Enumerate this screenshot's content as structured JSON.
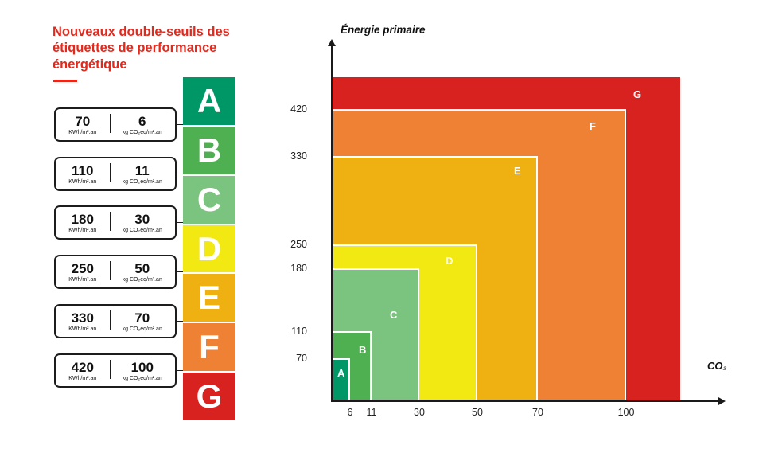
{
  "left_panel": {
    "title": "Nouveaux double-seuils des étiquettes de performance énergétique",
    "title_color": "#e5281c",
    "kwh_unit": "KWh/m².an",
    "co2_unit": "kg CO₂eq/m².an",
    "thresholds": [
      {
        "kwh": "70",
        "co2": "6"
      },
      {
        "kwh": "110",
        "co2": "11"
      },
      {
        "kwh": "180",
        "co2": "30"
      },
      {
        "kwh": "250",
        "co2": "50"
      },
      {
        "kwh": "330",
        "co2": "70"
      },
      {
        "kwh": "420",
        "co2": "100"
      }
    ],
    "classes": [
      {
        "letter": "A",
        "color": "#009767"
      },
      {
        "letter": "B",
        "color": "#4fb052"
      },
      {
        "letter": "C",
        "color": "#7ac47f"
      },
      {
        "letter": "D",
        "color": "#f2e812"
      },
      {
        "letter": "E",
        "color": "#efb111"
      },
      {
        "letter": "F",
        "color": "#ee8134"
      },
      {
        "letter": "G",
        "color": "#d7221f"
      }
    ]
  },
  "chart": {
    "y_axis_title": "Énergie primaire",
    "x_axis_title": "CO₂",
    "y_ticks": [
      "420",
      "330",
      "250",
      "180",
      "110",
      "70"
    ],
    "x_ticks": [
      "6",
      "11",
      "30",
      "50",
      "70",
      "100"
    ]
  },
  "chart_data": {
    "type": "area",
    "subtype": "nested-rectangles",
    "title": "Nouveaux double-seuils des étiquettes de performance énergétique",
    "xlabel": "CO₂ (kg CO₂eq/m².an)",
    "ylabel": "Énergie primaire (KWh/m².an)",
    "x_ticks": [
      6,
      11,
      30,
      50,
      70,
      100
    ],
    "y_ticks": [
      70,
      110,
      180,
      250,
      330,
      420
    ],
    "legend_position": "labels-inside-regions",
    "grid": false,
    "classes": [
      {
        "label": "A",
        "max_energy": 70,
        "max_co2": 6,
        "color": "#009767"
      },
      {
        "label": "B",
        "max_energy": 110,
        "max_co2": 11,
        "color": "#4fb052"
      },
      {
        "label": "C",
        "max_energy": 180,
        "max_co2": 30,
        "color": "#7ac47f"
      },
      {
        "label": "D",
        "max_energy": 250,
        "max_co2": 50,
        "color": "#f2e812"
      },
      {
        "label": "E",
        "max_energy": 330,
        "max_co2": 70,
        "color": "#efb111"
      },
      {
        "label": "F",
        "max_energy": 420,
        "max_co2": 100,
        "color": "#ee8134"
      },
      {
        "label": "G",
        "max_energy": null,
        "max_co2": null,
        "color": "#d7221f"
      }
    ]
  }
}
